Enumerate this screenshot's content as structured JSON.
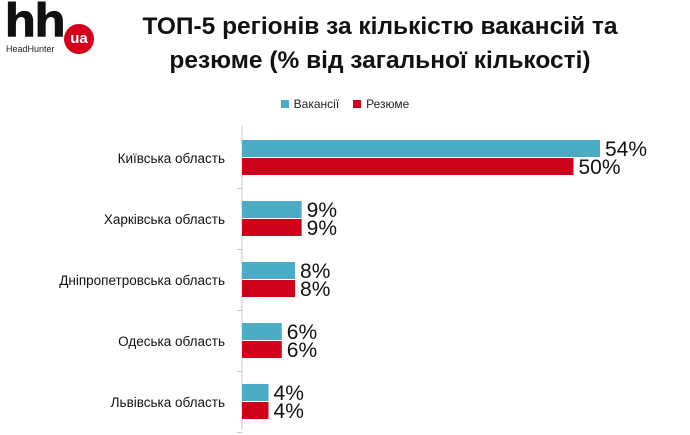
{
  "logo": {
    "main": "hh",
    "badge": "ua",
    "sub": "HeadHunter"
  },
  "colors": {
    "vacancies": "#4bacc6",
    "resumes": "#d0021b"
  },
  "chart_data": {
    "type": "bar",
    "orientation": "horizontal",
    "title_lines": [
      "ТОП-5 регіонів за кількістю вакансій та",
      "резюме (% від загальної кількості)"
    ],
    "categories": [
      "Київська область",
      "Харківська область",
      "Дніпропетровська область",
      "Одеська область",
      "Львівська область"
    ],
    "series": [
      {
        "name": "Вакансії",
        "values": [
          54,
          9,
          8,
          6,
          4
        ],
        "labels": [
          "54%",
          "9%",
          "8%",
          "6%",
          "4%"
        ]
      },
      {
        "name": "Резюме",
        "values": [
          50,
          9,
          8,
          6,
          4
        ],
        "labels": [
          "50%",
          "9%",
          "8%",
          "6%",
          "4%"
        ]
      }
    ],
    "xlim": [
      0,
      54
    ],
    "grid": false,
    "legend_position": "top"
  }
}
